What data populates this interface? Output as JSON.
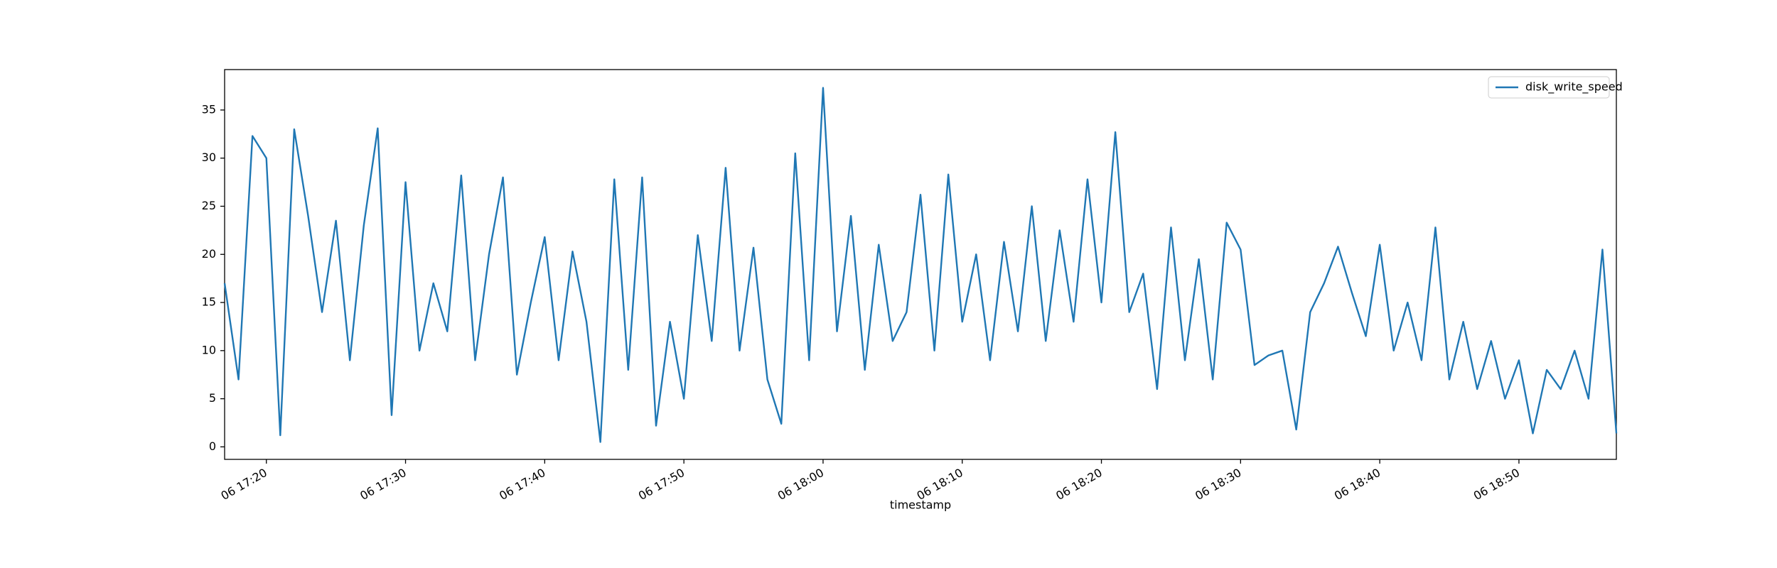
{
  "chart_data": {
    "type": "line",
    "xlabel": "timestamp",
    "x": [
      "06 17:17",
      "06 17:18",
      "06 17:19",
      "06 17:20",
      "06 17:21",
      "06 17:22",
      "06 17:23",
      "06 17:24",
      "06 17:25",
      "06 17:26",
      "06 17:27",
      "06 17:28",
      "06 17:29",
      "06 17:30",
      "06 17:31",
      "06 17:32",
      "06 17:33",
      "06 17:34",
      "06 17:35",
      "06 17:36",
      "06 17:37",
      "06 17:38",
      "06 17:39",
      "06 17:40",
      "06 17:41",
      "06 17:42",
      "06 17:43",
      "06 17:44",
      "06 17:45",
      "06 17:46",
      "06 17:47",
      "06 17:48",
      "06 17:49",
      "06 17:50",
      "06 17:51",
      "06 17:52",
      "06 17:53",
      "06 17:54",
      "06 17:55",
      "06 17:56",
      "06 17:57",
      "06 17:58",
      "06 17:59",
      "06 18:00",
      "06 18:01",
      "06 18:02",
      "06 18:03",
      "06 18:04",
      "06 18:05",
      "06 18:06",
      "06 18:07",
      "06 18:08",
      "06 18:09",
      "06 18:10",
      "06 18:11",
      "06 18:12",
      "06 18:13",
      "06 18:14",
      "06 18:15",
      "06 18:16",
      "06 18:17",
      "06 18:18",
      "06 18:19",
      "06 18:20",
      "06 18:21",
      "06 18:22",
      "06 18:23",
      "06 18:24",
      "06 18:25",
      "06 18:26",
      "06 18:27",
      "06 18:28",
      "06 18:29",
      "06 18:30",
      "06 18:31",
      "06 18:32",
      "06 18:33",
      "06 18:34",
      "06 18:35",
      "06 18:36",
      "06 18:37",
      "06 18:38",
      "06 18:39",
      "06 18:40",
      "06 18:41",
      "06 18:42",
      "06 18:43",
      "06 18:44",
      "06 18:45",
      "06 18:46",
      "06 18:47",
      "06 18:48",
      "06 18:49",
      "06 18:50",
      "06 18:51",
      "06 18:52",
      "06 18:53",
      "06 18:54",
      "06 18:55",
      "06 18:56",
      "06 18:57"
    ],
    "series": [
      {
        "name": "disk_write_speed",
        "color": "#1f77b4",
        "values": [
          17,
          7,
          32.3,
          30,
          1.2,
          33,
          24,
          14,
          23.5,
          9,
          23,
          33.1,
          3.3,
          27.5,
          10,
          17,
          12,
          28.2,
          9,
          20,
          28,
          7.5,
          15,
          21.8,
          9,
          20.3,
          13,
          0.5,
          27.8,
          8,
          28,
          2.2,
          13,
          5,
          22,
          11,
          29,
          10,
          20.7,
          7,
          2.4,
          30.5,
          9,
          37.3,
          12,
          24,
          8,
          21,
          11,
          14,
          26.2,
          10,
          28.3,
          13,
          20,
          9,
          21.3,
          12,
          25,
          11,
          22.5,
          13,
          27.8,
          15,
          32.7,
          14,
          18,
          6,
          22.8,
          9,
          19.5,
          7,
          23.3,
          20.5,
          8.5,
          9.5,
          10,
          1.8,
          14,
          17,
          20.8,
          16,
          11.5,
          21,
          10,
          15,
          9,
          22.8,
          7,
          13,
          6,
          11,
          5,
          9,
          1.4,
          8,
          6,
          10,
          5,
          20.5,
          1.4
        ]
      }
    ],
    "xlim": [
      "06 17:17",
      "06 18:57"
    ],
    "xticks": [
      "06 17:20",
      "06 17:30",
      "06 17:40",
      "06 17:50",
      "06 18:00",
      "06 18:10",
      "06 18:20",
      "06 18:30",
      "06 18:40",
      "06 18:50"
    ],
    "ylim": [
      -1.3,
      39.2
    ],
    "yticks": [
      0,
      5,
      10,
      15,
      20,
      25,
      30,
      35
    ],
    "legend": "upper right"
  }
}
